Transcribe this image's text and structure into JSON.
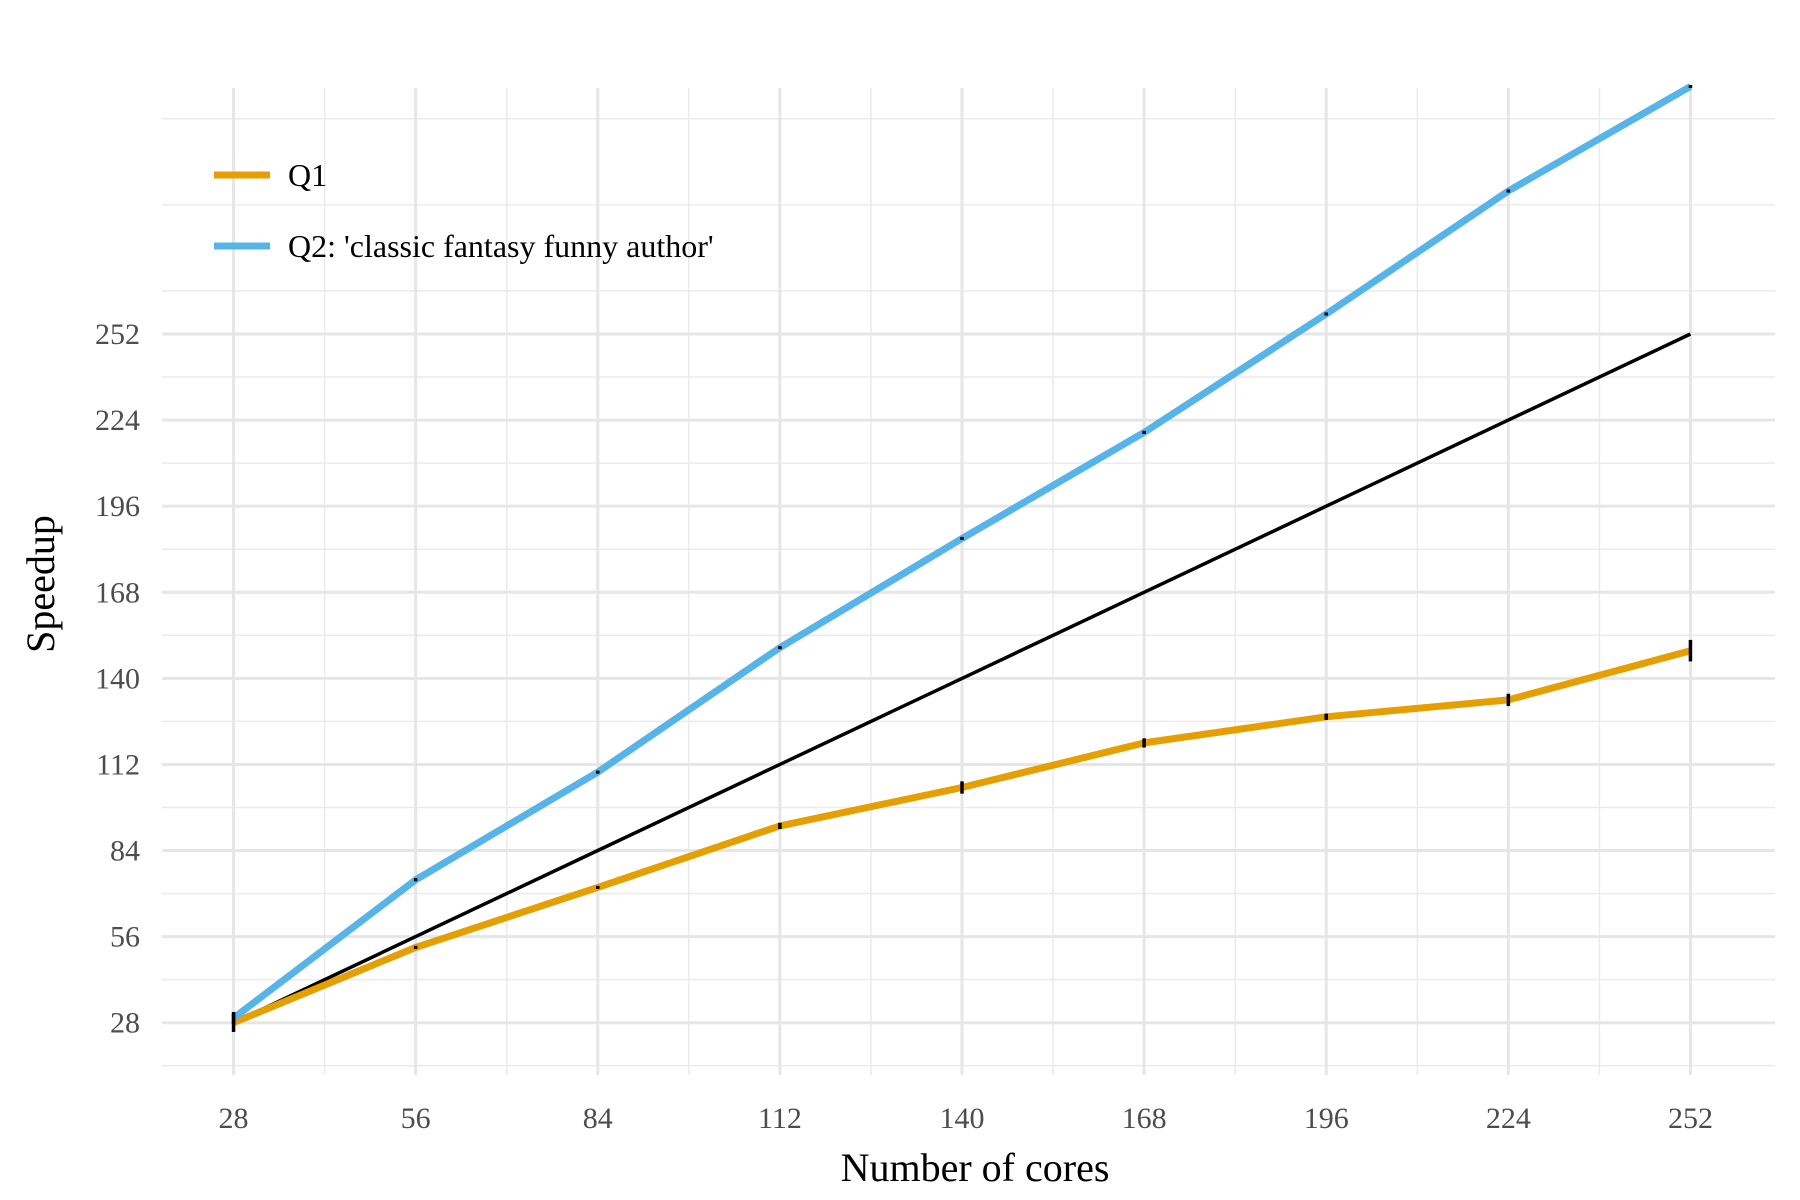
{
  "chart_data": {
    "type": "line",
    "title": "",
    "xlabel": "Number of cores",
    "ylabel": "Speedup",
    "x": [
      28,
      56,
      84,
      112,
      140,
      168,
      196,
      224,
      252
    ],
    "xlim": [
      17,
      265
    ],
    "ylim": [
      11,
      332
    ],
    "x_ticks": [
      28,
      56,
      84,
      112,
      140,
      168,
      196,
      224,
      252
    ],
    "y_ticks": [
      28,
      56,
      84,
      112,
      140,
      168,
      196,
      224,
      252
    ],
    "x_tick_labels": [
      "28",
      "56",
      "84",
      "112",
      "140",
      "168",
      "196",
      "224",
      "252"
    ],
    "y_tick_labels": [
      "28",
      "56",
      "84",
      "112",
      "140",
      "168",
      "196",
      "224",
      "252"
    ],
    "grid": true,
    "legend_position": "top-left",
    "series": [
      {
        "name": "Q1",
        "color": "#E69F00",
        "values": [
          28,
          52.5,
          72,
          92,
          104.5,
          119,
          127.5,
          133,
          149
        ],
        "error": [
          3,
          0.5,
          0.5,
          1,
          2,
          1.5,
          1,
          2,
          3.5
        ]
      },
      {
        "name": "Q2: 'classic fantasy funny author'",
        "color": "#56B4E9",
        "values": [
          29.5,
          74.5,
          109.5,
          150,
          185.5,
          220,
          258.5,
          298.5,
          332.5
        ],
        "error": [
          2,
          0.5,
          0.5,
          0.5,
          0.5,
          0.5,
          0.5,
          0.5,
          0.5
        ]
      },
      {
        "color": "#000000",
        "values": [
          28,
          56,
          84,
          112,
          140,
          168,
          196,
          224,
          252
        ]
      }
    ]
  }
}
